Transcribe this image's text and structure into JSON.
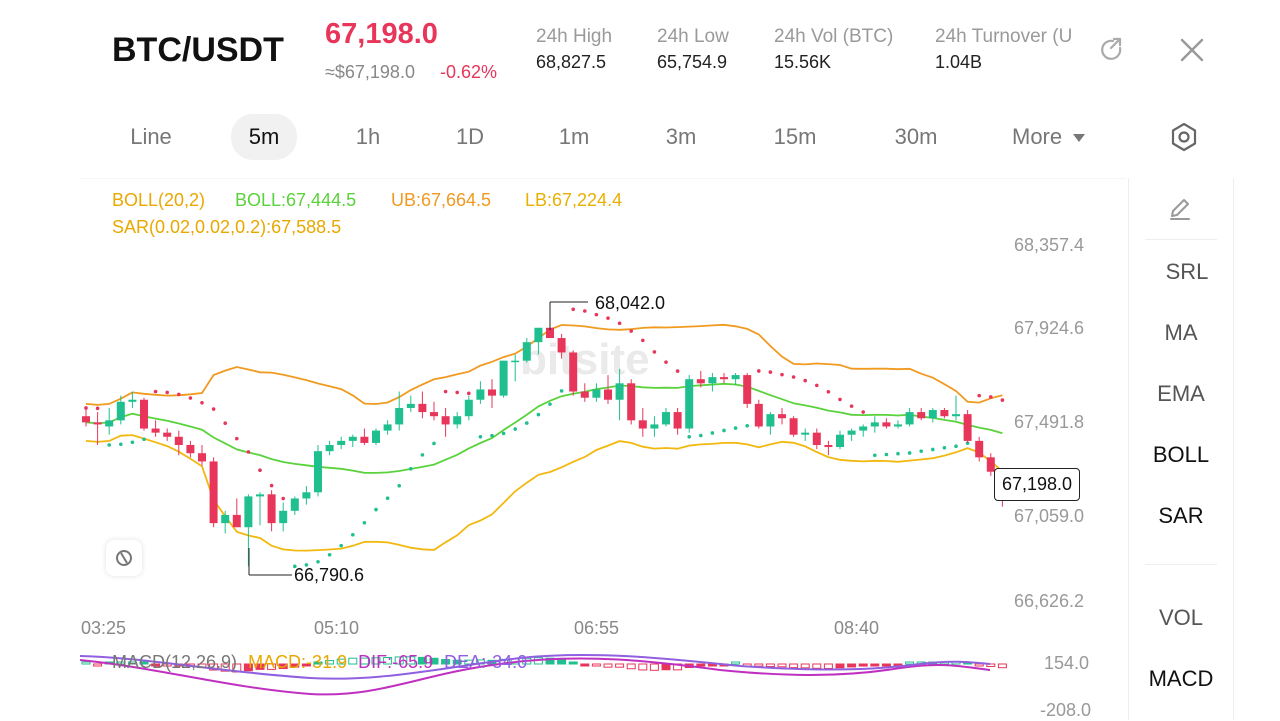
{
  "header": {
    "pair": "BTC/USDT",
    "last_price": "67,198.0",
    "approx_usd": "≈$67,198.0",
    "change_pct": "-0.62%",
    "stats": [
      {
        "label": "24h  High",
        "value": "68,827.5"
      },
      {
        "label": "24h  Low",
        "value": "65,754.9"
      },
      {
        "label": "24h  Vol (BTC)",
        "value": "15.56K"
      },
      {
        "label": "24h  Turnover (U",
        "value": "1.04B"
      }
    ]
  },
  "timeframes": [
    "Line",
    "5m",
    "1h",
    "1D",
    "1m",
    "3m",
    "15m",
    "30m",
    "More"
  ],
  "active_timeframe": "5m",
  "indicators": {
    "boll_label": "BOLL(20,2)",
    "boll_mid": "BOLL:67,444.5",
    "boll_ub": "UB:67,664.5",
    "boll_lb": "LB:67,224.4",
    "sar": "SAR(0.02,0.02,0.2):67,588.5"
  },
  "price_axis": [
    "68,357.4",
    "67,924.6",
    "67,491.8",
    "67,059.0",
    "66,626.2"
  ],
  "time_axis": [
    "03:25",
    "05:10",
    "06:55",
    "08:40"
  ],
  "current_price_tag": "67,198.0",
  "high_marker": "68,042.0",
  "low_marker": "66,790.6",
  "macd": {
    "label": "MACD(12,26,9)",
    "macd": "MACD:-31.9",
    "dif": "DIF:-65.9",
    "dea": "DEA:-34.0",
    "axis_top": "154.0",
    "axis_bottom": "-208.0"
  },
  "side_tools": {
    "items": [
      "SRL",
      "MA",
      "EMA",
      "BOLL",
      "SAR"
    ],
    "bottom_items": [
      "VOL",
      "MACD"
    ],
    "active": [
      "BOLL",
      "SAR",
      "MACD"
    ]
  },
  "colors": {
    "up": "#1fbf8f",
    "down": "#e8355a",
    "ub": "#f09a20",
    "mid": "#5ad23c",
    "lb": "#f2b80f",
    "dif": "#c030c0",
    "dea": "#9060e0"
  },
  "chart_data": {
    "type": "candlestick",
    "ylim": [
      66626.2,
      68357.4
    ],
    "candles": [
      {
        "o": 67520,
        "h": 67560,
        "l": 67470,
        "c": 67490
      },
      {
        "o": 67490,
        "h": 67540,
        "l": 67380,
        "c": 67480
      },
      {
        "o": 67470,
        "h": 67560,
        "l": 67430,
        "c": 67500
      },
      {
        "o": 67500,
        "h": 67620,
        "l": 67480,
        "c": 67590
      },
      {
        "o": 67590,
        "h": 67640,
        "l": 67560,
        "c": 67600
      },
      {
        "o": 67600,
        "h": 67610,
        "l": 67450,
        "c": 67460
      },
      {
        "o": 67460,
        "h": 67500,
        "l": 67420,
        "c": 67440
      },
      {
        "o": 67440,
        "h": 67460,
        "l": 67400,
        "c": 67420
      },
      {
        "o": 67420,
        "h": 67450,
        "l": 67330,
        "c": 67380
      },
      {
        "o": 67380,
        "h": 67400,
        "l": 67320,
        "c": 67340
      },
      {
        "o": 67340,
        "h": 67380,
        "l": 67280,
        "c": 67300
      },
      {
        "o": 67300,
        "h": 67320,
        "l": 66980,
        "c": 67000
      },
      {
        "o": 67000,
        "h": 67060,
        "l": 66950,
        "c": 67040
      },
      {
        "o": 67040,
        "h": 67120,
        "l": 66980,
        "c": 66980
      },
      {
        "o": 66980,
        "h": 67140,
        "l": 66790,
        "c": 67130
      },
      {
        "o": 67130,
        "h": 67150,
        "l": 66990,
        "c": 67140
      },
      {
        "o": 67140,
        "h": 67160,
        "l": 66960,
        "c": 67000
      },
      {
        "o": 67000,
        "h": 67100,
        "l": 66960,
        "c": 67060
      },
      {
        "o": 67060,
        "h": 67130,
        "l": 67040,
        "c": 67120
      },
      {
        "o": 67120,
        "h": 67180,
        "l": 67090,
        "c": 67150
      },
      {
        "o": 67150,
        "h": 67380,
        "l": 67130,
        "c": 67350
      },
      {
        "o": 67350,
        "h": 67400,
        "l": 67330,
        "c": 67380
      },
      {
        "o": 67380,
        "h": 67420,
        "l": 67360,
        "c": 67400
      },
      {
        "o": 67400,
        "h": 67430,
        "l": 67370,
        "c": 67420
      },
      {
        "o": 67420,
        "h": 67460,
        "l": 67380,
        "c": 67390
      },
      {
        "o": 67390,
        "h": 67460,
        "l": 67380,
        "c": 67450
      },
      {
        "o": 67450,
        "h": 67500,
        "l": 67430,
        "c": 67480
      },
      {
        "o": 67480,
        "h": 67640,
        "l": 67450,
        "c": 67560
      },
      {
        "o": 67560,
        "h": 67620,
        "l": 67540,
        "c": 67580
      },
      {
        "o": 67580,
        "h": 67640,
        "l": 67510,
        "c": 67540
      },
      {
        "o": 67540,
        "h": 67590,
        "l": 67500,
        "c": 67520
      },
      {
        "o": 67520,
        "h": 67560,
        "l": 67420,
        "c": 67480
      },
      {
        "o": 67480,
        "h": 67540,
        "l": 67460,
        "c": 67520
      },
      {
        "o": 67520,
        "h": 67620,
        "l": 67500,
        "c": 67600
      },
      {
        "o": 67600,
        "h": 67690,
        "l": 67580,
        "c": 67650
      },
      {
        "o": 67650,
        "h": 67700,
        "l": 67560,
        "c": 67620
      },
      {
        "o": 67620,
        "h": 67790,
        "l": 67610,
        "c": 67790
      },
      {
        "o": 67790,
        "h": 67820,
        "l": 67690,
        "c": 67790
      },
      {
        "o": 67790,
        "h": 67900,
        "l": 67780,
        "c": 67880
      },
      {
        "o": 67880,
        "h": 67950,
        "l": 67820,
        "c": 67950
      },
      {
        "o": 67950,
        "h": 68040,
        "l": 67900,
        "c": 67900
      },
      {
        "o": 67900,
        "h": 67920,
        "l": 67800,
        "c": 67830
      },
      {
        "o": 67830,
        "h": 67840,
        "l": 67620,
        "c": 67640
      },
      {
        "o": 67640,
        "h": 67680,
        "l": 67590,
        "c": 67610
      },
      {
        "o": 67610,
        "h": 67680,
        "l": 67590,
        "c": 67650
      },
      {
        "o": 67650,
        "h": 67720,
        "l": 67580,
        "c": 67600
      },
      {
        "o": 67600,
        "h": 67750,
        "l": 67500,
        "c": 67680
      },
      {
        "o": 67680,
        "h": 67700,
        "l": 67480,
        "c": 67500
      },
      {
        "o": 67500,
        "h": 67560,
        "l": 67420,
        "c": 67460
      },
      {
        "o": 67460,
        "h": 67520,
        "l": 67420,
        "c": 67480
      },
      {
        "o": 67480,
        "h": 67560,
        "l": 67470,
        "c": 67540
      },
      {
        "o": 67540,
        "h": 67560,
        "l": 67430,
        "c": 67460
      },
      {
        "o": 67460,
        "h": 67720,
        "l": 67440,
        "c": 67700
      },
      {
        "o": 67700,
        "h": 67740,
        "l": 67660,
        "c": 67680
      },
      {
        "o": 67680,
        "h": 67730,
        "l": 67640,
        "c": 67710
      },
      {
        "o": 67710,
        "h": 67730,
        "l": 67680,
        "c": 67700
      },
      {
        "o": 67700,
        "h": 67730,
        "l": 67670,
        "c": 67720
      },
      {
        "o": 67720,
        "h": 67730,
        "l": 67560,
        "c": 67580
      },
      {
        "o": 67580,
        "h": 67600,
        "l": 67460,
        "c": 67470
      },
      {
        "o": 67470,
        "h": 67540,
        "l": 67430,
        "c": 67530
      },
      {
        "o": 67530,
        "h": 67560,
        "l": 67480,
        "c": 67510
      },
      {
        "o": 67510,
        "h": 67520,
        "l": 67420,
        "c": 67430
      },
      {
        "o": 67430,
        "h": 67460,
        "l": 67400,
        "c": 67440
      },
      {
        "o": 67440,
        "h": 67460,
        "l": 67360,
        "c": 67380
      },
      {
        "o": 67380,
        "h": 67400,
        "l": 67330,
        "c": 67370
      },
      {
        "o": 67370,
        "h": 67450,
        "l": 67360,
        "c": 67430
      },
      {
        "o": 67430,
        "h": 67460,
        "l": 67400,
        "c": 67450
      },
      {
        "o": 67450,
        "h": 67480,
        "l": 67420,
        "c": 67470
      },
      {
        "o": 67470,
        "h": 67520,
        "l": 67440,
        "c": 67490
      },
      {
        "o": 67490,
        "h": 67510,
        "l": 67460,
        "c": 67470
      },
      {
        "o": 67470,
        "h": 67500,
        "l": 67460,
        "c": 67480
      },
      {
        "o": 67480,
        "h": 67560,
        "l": 67470,
        "c": 67540
      },
      {
        "o": 67540,
        "h": 67560,
        "l": 67500,
        "c": 67510
      },
      {
        "o": 67510,
        "h": 67560,
        "l": 67490,
        "c": 67550
      },
      {
        "o": 67550,
        "h": 67560,
        "l": 67510,
        "c": 67520
      },
      {
        "o": 67520,
        "h": 67620,
        "l": 67500,
        "c": 67530
      },
      {
        "o": 67530,
        "h": 67550,
        "l": 67390,
        "c": 67400
      },
      {
        "o": 67400,
        "h": 67420,
        "l": 67300,
        "c": 67320
      },
      {
        "o": 67320,
        "h": 67340,
        "l": 67230,
        "c": 67250
      },
      {
        "o": 67250,
        "h": 67260,
        "l": 67080,
        "c": 67200
      }
    ]
  }
}
